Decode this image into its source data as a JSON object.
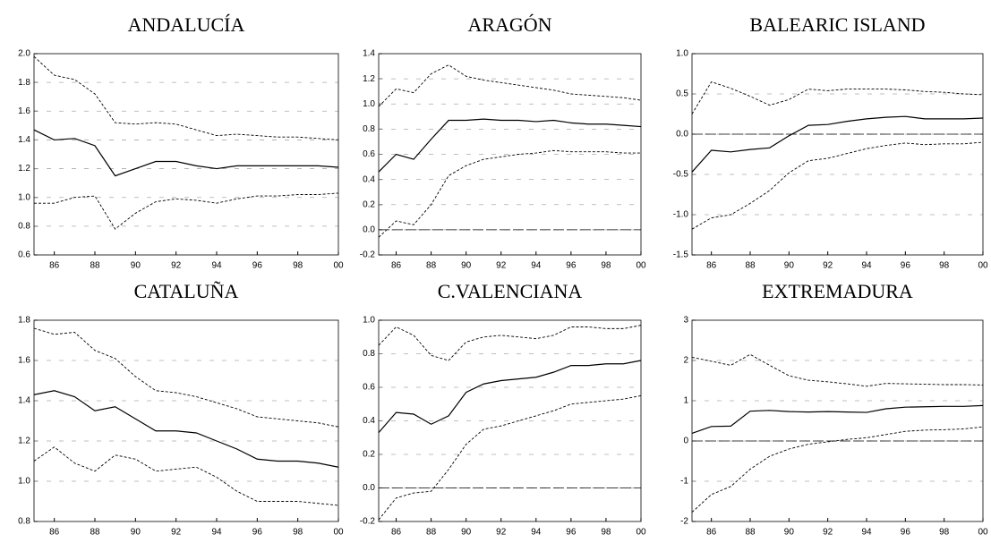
{
  "chart_data": [
    {
      "type": "line",
      "title": "ANDALUCÍA",
      "x": [
        85,
        86,
        87,
        88,
        89,
        90,
        91,
        92,
        93,
        94,
        95,
        96,
        97,
        98,
        99,
        100
      ],
      "xlim": [
        85,
        100
      ],
      "xticks": [
        86,
        88,
        90,
        92,
        94,
        96,
        98,
        {
          "value": 100,
          "label": "00"
        }
      ],
      "ylim": [
        0.6,
        2.0
      ],
      "yticks": [
        0.6,
        0.8,
        {
          "value": 1,
          "label": "1.0"
        },
        1.2,
        1.4,
        1.6,
        1.8,
        {
          "value": 2,
          "label": "2.0"
        }
      ],
      "grid": true,
      "zero_line": false,
      "series": [
        {
          "color": "#000000",
          "dashed": true,
          "values": [
            1.98,
            1.85,
            1.82,
            1.72,
            1.52,
            1.51,
            1.52,
            1.51,
            1.47,
            1.43,
            1.44,
            1.43,
            1.42,
            1.42,
            1.41,
            1.4
          ]
        },
        {
          "color": "#000000",
          "dashed": false,
          "values": [
            1.47,
            1.4,
            1.41,
            1.36,
            1.15,
            1.2,
            1.25,
            1.25,
            1.22,
            1.2,
            1.22,
            1.22,
            1.22,
            1.22,
            1.22,
            1.21
          ]
        },
        {
          "color": "#000000",
          "dashed": true,
          "values": [
            0.96,
            0.96,
            1.0,
            1.01,
            0.78,
            0.89,
            0.97,
            0.99,
            0.98,
            0.96,
            0.99,
            1.01,
            1.01,
            1.02,
            1.02,
            1.03
          ]
        }
      ]
    },
    {
      "type": "line",
      "title": "ARAGÓN",
      "x": [
        85,
        86,
        87,
        88,
        89,
        90,
        91,
        92,
        93,
        94,
        95,
        96,
        97,
        98,
        99,
        100
      ],
      "xlim": [
        85,
        100
      ],
      "xticks": [
        86,
        88,
        90,
        92,
        94,
        96,
        98,
        {
          "value": 100,
          "label": "00"
        }
      ],
      "ylim": [
        -0.2,
        1.4
      ],
      "yticks": [
        -0.2,
        {
          "value": 0,
          "label": "0.0"
        },
        0.2,
        0.4,
        0.6,
        0.8,
        {
          "value": 1,
          "label": "1.0"
        },
        1.2,
        1.4
      ],
      "grid": true,
      "zero_line": true,
      "series": [
        {
          "color": "#000000",
          "dashed": true,
          "values": [
            0.98,
            1.12,
            1.09,
            1.24,
            1.31,
            1.22,
            1.19,
            1.17,
            1.15,
            1.13,
            1.11,
            1.08,
            1.07,
            1.06,
            1.05,
            1.03
          ]
        },
        {
          "color": "#000000",
          "dashed": false,
          "values": [
            0.46,
            0.6,
            0.56,
            0.72,
            0.87,
            0.87,
            0.88,
            0.87,
            0.87,
            0.86,
            0.87,
            0.85,
            0.84,
            0.84,
            0.83,
            0.82
          ]
        },
        {
          "color": "#000000",
          "dashed": true,
          "values": [
            -0.06,
            0.07,
            0.04,
            0.2,
            0.43,
            0.51,
            0.56,
            0.58,
            0.6,
            0.61,
            0.63,
            0.62,
            0.62,
            0.62,
            0.61,
            0.61
          ]
        }
      ]
    },
    {
      "type": "line",
      "title": "BALEARIC ISLAND",
      "x": [
        85,
        86,
        87,
        88,
        89,
        90,
        91,
        92,
        93,
        94,
        95,
        96,
        97,
        98,
        99,
        100
      ],
      "xlim": [
        85,
        100
      ],
      "xticks": [
        86,
        88,
        90,
        92,
        94,
        96,
        98,
        {
          "value": 100,
          "label": "00"
        }
      ],
      "ylim": [
        -1.5,
        1.0
      ],
      "yticks": [
        -1.5,
        {
          "value": -1,
          "label": "-1.0"
        },
        -0.5,
        {
          "value": 0,
          "label": "0.0"
        },
        0.5,
        {
          "value": 1,
          "label": "1.0"
        }
      ],
      "grid": true,
      "zero_line": true,
      "series": [
        {
          "color": "#000000",
          "dashed": true,
          "values": [
            0.25,
            0.65,
            0.57,
            0.47,
            0.36,
            0.43,
            0.56,
            0.54,
            0.56,
            0.56,
            0.56,
            0.55,
            0.53,
            0.52,
            0.5,
            0.49
          ]
        },
        {
          "color": "#000000",
          "dashed": false,
          "values": [
            -0.47,
            -0.2,
            -0.22,
            -0.19,
            -0.17,
            -0.02,
            0.11,
            0.12,
            0.16,
            0.19,
            0.21,
            0.22,
            0.19,
            0.19,
            0.19,
            0.2
          ]
        },
        {
          "color": "#000000",
          "dashed": true,
          "values": [
            -1.18,
            -1.04,
            -1.0,
            -0.86,
            -0.7,
            -0.48,
            -0.33,
            -0.3,
            -0.24,
            -0.18,
            -0.14,
            -0.11,
            -0.13,
            -0.12,
            -0.12,
            -0.1
          ]
        }
      ]
    },
    {
      "type": "line",
      "title": "CATALUÑA",
      "x": [
        85,
        86,
        87,
        88,
        89,
        90,
        91,
        92,
        93,
        94,
        95,
        96,
        97,
        98,
        99,
        100
      ],
      "xlim": [
        85,
        100
      ],
      "xticks": [
        86,
        88,
        90,
        92,
        94,
        96,
        98,
        {
          "value": 100,
          "label": "00"
        }
      ],
      "ylim": [
        0.8,
        1.8
      ],
      "yticks": [
        0.8,
        {
          "value": 1,
          "label": "1.0"
        },
        1.2,
        1.4,
        1.6,
        1.8
      ],
      "grid": true,
      "zero_line": false,
      "series": [
        {
          "color": "#000000",
          "dashed": true,
          "values": [
            1.76,
            1.73,
            1.74,
            1.65,
            1.61,
            1.52,
            1.45,
            1.44,
            1.42,
            1.39,
            1.36,
            1.32,
            1.31,
            1.3,
            1.29,
            1.27
          ]
        },
        {
          "color": "#000000",
          "dashed": false,
          "values": [
            1.43,
            1.45,
            1.42,
            1.35,
            1.37,
            1.31,
            1.25,
            1.25,
            1.24,
            1.2,
            1.16,
            1.11,
            1.1,
            1.1,
            1.09,
            1.07
          ]
        },
        {
          "color": "#000000",
          "dashed": true,
          "values": [
            1.1,
            1.17,
            1.09,
            1.05,
            1.13,
            1.11,
            1.05,
            1.06,
            1.07,
            1.02,
            0.95,
            0.9,
            0.9,
            0.9,
            0.89,
            0.88
          ]
        }
      ]
    },
    {
      "type": "line",
      "title": "C.VALENCIANA",
      "x": [
        85,
        86,
        87,
        88,
        89,
        90,
        91,
        92,
        93,
        94,
        95,
        96,
        97,
        98,
        99,
        100
      ],
      "xlim": [
        85,
        100
      ],
      "xticks": [
        86,
        88,
        90,
        92,
        94,
        96,
        98,
        {
          "value": 100,
          "label": "00"
        }
      ],
      "ylim": [
        -0.2,
        1.0
      ],
      "yticks": [
        -0.2,
        {
          "value": 0,
          "label": "0.0"
        },
        0.2,
        0.4,
        0.6,
        0.8,
        {
          "value": 1,
          "label": "1.0"
        }
      ],
      "grid": true,
      "zero_line": true,
      "series": [
        {
          "color": "#000000",
          "dashed": true,
          "values": [
            0.85,
            0.96,
            0.91,
            0.79,
            0.76,
            0.87,
            0.9,
            0.91,
            0.9,
            0.89,
            0.91,
            0.96,
            0.96,
            0.95,
            0.95,
            0.97
          ]
        },
        {
          "color": "#000000",
          "dashed": false,
          "values": [
            0.33,
            0.45,
            0.44,
            0.38,
            0.43,
            0.57,
            0.62,
            0.64,
            0.65,
            0.66,
            0.69,
            0.73,
            0.73,
            0.74,
            0.74,
            0.76
          ]
        },
        {
          "color": "#000000",
          "dashed": true,
          "values": [
            -0.19,
            -0.06,
            -0.03,
            -0.02,
            0.11,
            0.26,
            0.35,
            0.37,
            0.4,
            0.43,
            0.46,
            0.5,
            0.51,
            0.52,
            0.53,
            0.55
          ]
        }
      ]
    },
    {
      "type": "line",
      "title": "EXTREMADURA",
      "x": [
        85,
        86,
        87,
        88,
        89,
        90,
        91,
        92,
        93,
        94,
        95,
        96,
        97,
        98,
        99,
        100
      ],
      "xlim": [
        85,
        100
      ],
      "xticks": [
        86,
        88,
        90,
        92,
        94,
        96,
        98,
        {
          "value": 100,
          "label": "00"
        }
      ],
      "ylim": [
        -2,
        3
      ],
      "yticks": [
        -2,
        -1,
        0,
        1,
        2,
        3
      ],
      "grid": true,
      "zero_line": true,
      "series": [
        {
          "color": "#000000",
          "dashed": true,
          "values": [
            2.08,
            1.98,
            1.88,
            2.15,
            1.88,
            1.62,
            1.51,
            1.47,
            1.42,
            1.36,
            1.43,
            1.42,
            1.41,
            1.4,
            1.4,
            1.39
          ]
        },
        {
          "color": "#000000",
          "dashed": false,
          "values": [
            0.19,
            0.36,
            0.37,
            0.74,
            0.76,
            0.73,
            0.72,
            0.73,
            0.72,
            0.71,
            0.8,
            0.84,
            0.85,
            0.86,
            0.86,
            0.88
          ]
        },
        {
          "color": "#000000",
          "dashed": true,
          "values": [
            -1.77,
            -1.33,
            -1.13,
            -0.7,
            -0.38,
            -0.2,
            -0.08,
            -0.02,
            0.04,
            0.08,
            0.16,
            0.24,
            0.27,
            0.28,
            0.3,
            0.35
          ]
        }
      ]
    }
  ]
}
